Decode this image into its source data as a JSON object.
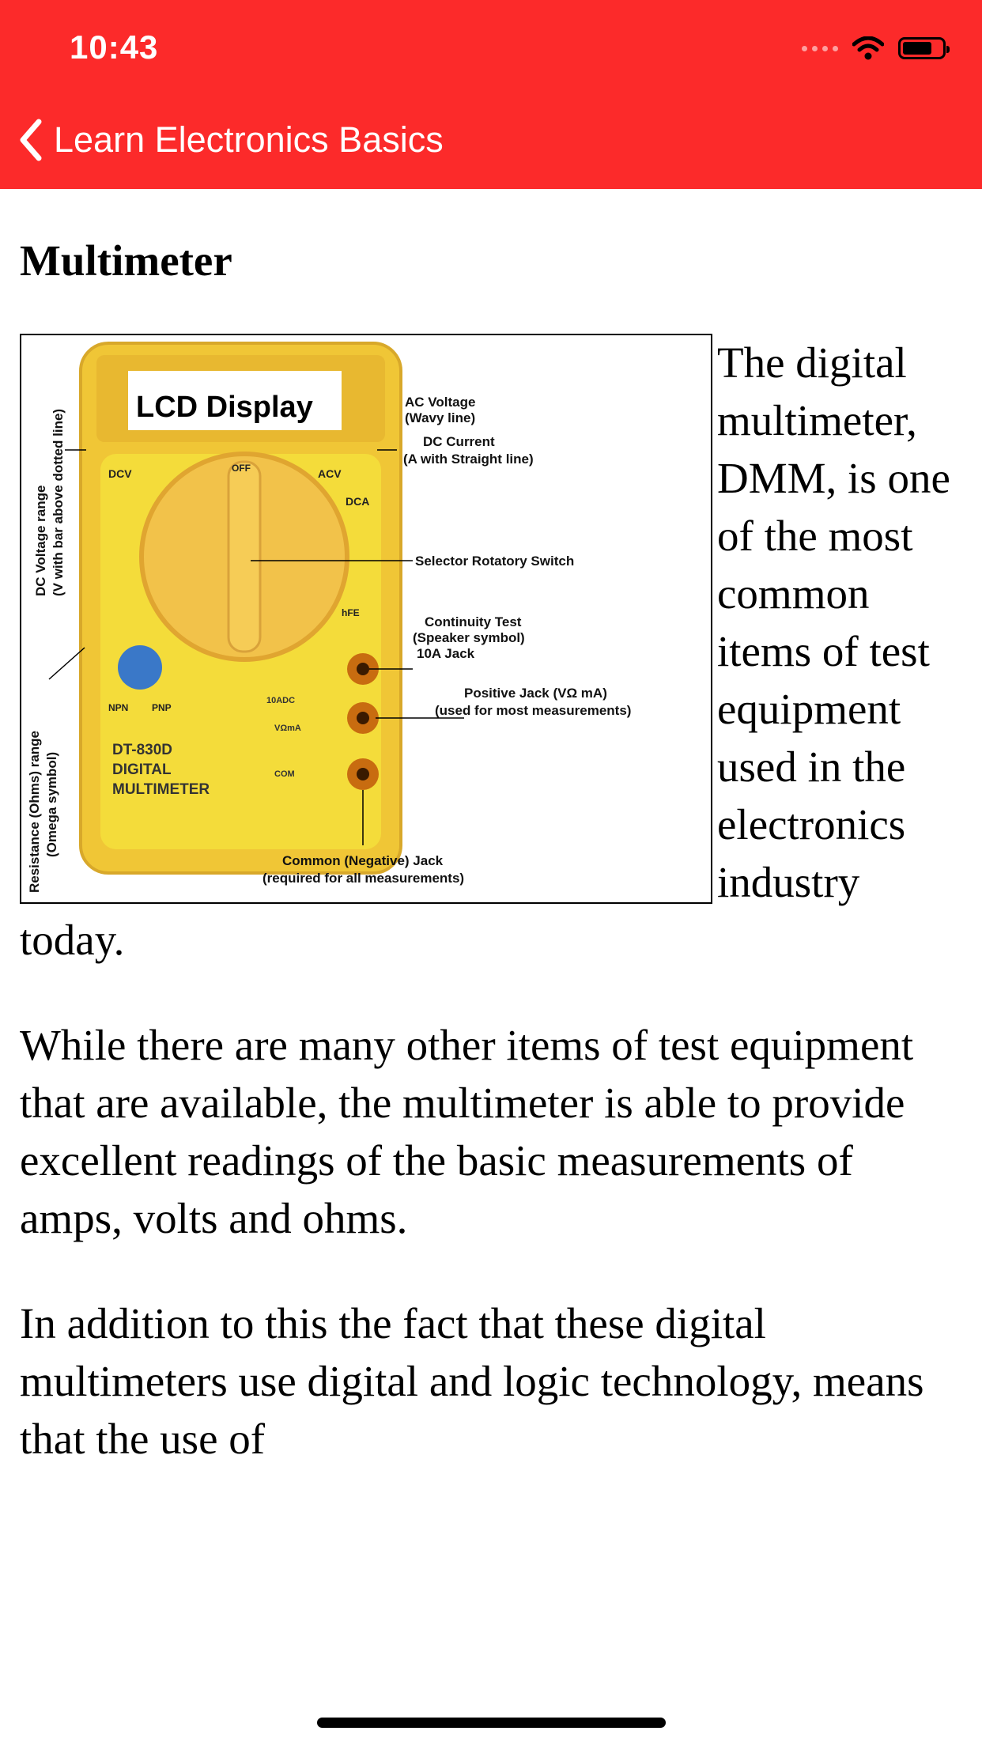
{
  "status_bar": {
    "time": "10:43",
    "icons": [
      "signal-dots-icon",
      "wifi-icon",
      "battery-icon"
    ]
  },
  "nav": {
    "back_icon": "chevron-left-icon",
    "title": "Learn Electronics Basics",
    "color": "#fc2a2a"
  },
  "article": {
    "title": "Multimeter",
    "figure": {
      "lcd_label": "LCD Display",
      "model": [
        "DT-830D",
        "DIGITAL",
        "MULTIMETER"
      ],
      "labels": {
        "dc_voltage": [
          "DC Voltage range",
          "(V with bar above dotted line)"
        ],
        "resistance": [
          "Resistance (Ohms) range",
          "(Omega symbol)"
        ],
        "ac_voltage": [
          "AC Voltage",
          "(Wavy line)"
        ],
        "dc_current": [
          "DC Current",
          "(A with Straight line)"
        ],
        "selector": "Selector Rotatory Switch",
        "continuity": [
          "Continuity Test",
          "(Speaker symbol)"
        ],
        "jack_10a": "10A Jack",
        "positive_jack": [
          "Positive Jack (VΩ mA)",
          "(used for most measurements)"
        ],
        "common_jack": [
          "Common (Negative) Jack",
          "(required for all measurements)"
        ]
      },
      "dial_labels": [
        "DCV",
        "OFF",
        "ACV",
        "DCA",
        "hFE",
        "NPN",
        "PNP",
        "10ADC",
        "VΩmA",
        "COM"
      ]
    },
    "paragraphs": [
      "The digital multimeter, DMM, is one of the most common items of test equipment used in the electronics industry today.",
      "While there are many other items of test equipment that are available, the multimeter is able to provide excellent readings of the basic measurements of amps, volts and ohms.",
      "In addition to this the fact that these digital multimeters use digital and logic technology, means that the use of"
    ]
  }
}
